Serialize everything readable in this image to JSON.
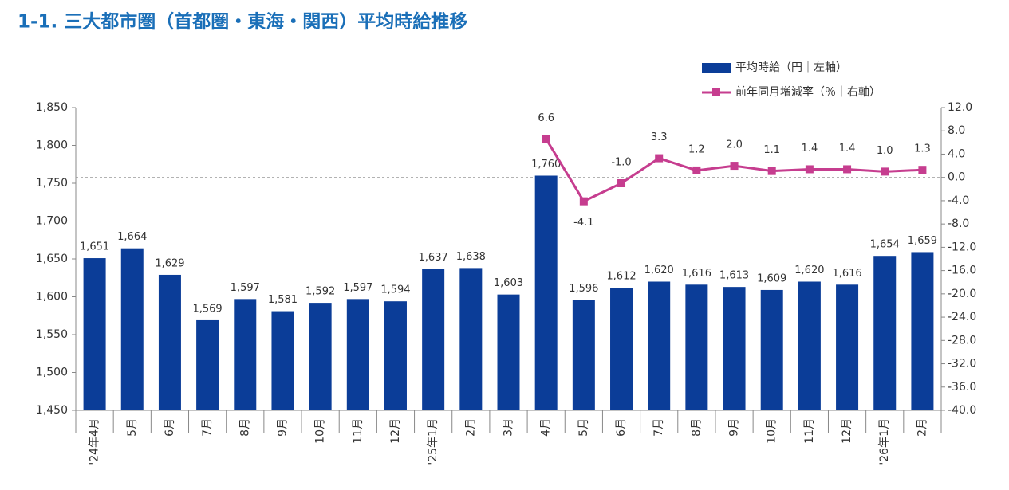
{
  "chart_data": {
    "type": "bar_line",
    "title": "1-1. 三大都市圏（首都圏・東海・関西）平均時給推移",
    "categories": [
      "'24年4月",
      "5月",
      "6月",
      "7月",
      "8月",
      "9月",
      "10月",
      "11月",
      "12月",
      "'25年1月",
      "2月",
      "3月",
      "4月",
      "5月",
      "6月",
      "7月",
      "8月",
      "9月",
      "10月",
      "11月",
      "12月",
      "'26年1月",
      "2月"
    ],
    "series": [
      {
        "name": "平均時給（円｜左軸）",
        "type": "bar",
        "color": "#0b3d98",
        "values": [
          1651,
          1664,
          1629,
          1569,
          1597,
          1581,
          1592,
          1597,
          1594,
          1637,
          1638,
          1603,
          1760,
          1596,
          1612,
          1620,
          1616,
          1613,
          1609,
          1620,
          1616,
          1654,
          1659
        ],
        "value_labels": [
          "1,651",
          "1,664",
          "1,629",
          "1,569",
          "1,597",
          "1,581",
          "1,592",
          "1,597",
          "1,594",
          "1,637",
          "1,638",
          "1,603",
          "1,760",
          "1,596",
          "1,612",
          "1,620",
          "1,616",
          "1,613",
          "1,609",
          "1,620",
          "1,616",
          "1,654",
          "1,659"
        ]
      },
      {
        "name": "前年同月増減率（％｜右軸）",
        "type": "line",
        "axis": "y2",
        "color": "#c63d8f",
        "values": [
          null,
          null,
          null,
          null,
          null,
          null,
          null,
          null,
          null,
          null,
          null,
          null,
          6.6,
          -4.1,
          -1.0,
          3.3,
          1.2,
          2.0,
          1.1,
          1.4,
          1.4,
          1.0,
          1.3
        ],
        "value_labels": [
          null,
          null,
          null,
          null,
          null,
          null,
          null,
          null,
          null,
          null,
          null,
          null,
          "6.6",
          "-4.1",
          "-1.0",
          "3.3",
          "1.2",
          "2.0",
          "1.1",
          "1.4",
          "1.4",
          "1.0",
          "1.3"
        ]
      }
    ],
    "ylim": [
      1450,
      1850
    ],
    "yticks": [
      {
        "value": 1450,
        "label": "1,450"
      },
      {
        "value": 1500,
        "label": "1,500"
      },
      {
        "value": 1550,
        "label": "1,550"
      },
      {
        "value": 1600,
        "label": "1,600"
      },
      {
        "value": 1650,
        "label": "1,650"
      },
      {
        "value": 1700,
        "label": "1,700"
      },
      {
        "value": 1750,
        "label": "1,750"
      },
      {
        "value": 1800,
        "label": "1,800"
      },
      {
        "value": 1850,
        "label": "1,850"
      }
    ],
    "y2lim": [
      -40,
      12
    ],
    "y2ticks": [
      {
        "value": 12,
        "label": "12.0"
      },
      {
        "value": 8,
        "label": "8.0"
      },
      {
        "value": 4,
        "label": "4.0"
      },
      {
        "value": 0,
        "label": "0.0"
      },
      {
        "value": -4,
        "label": "-4.0"
      },
      {
        "value": -8,
        "label": "-8.0"
      },
      {
        "value": -12,
        "label": "-12.0"
      },
      {
        "value": -16,
        "label": "-16.0"
      },
      {
        "value": -20,
        "label": "-20.0"
      },
      {
        "value": -24,
        "label": "-24.0"
      },
      {
        "value": -28,
        "label": "-28.0"
      },
      {
        "value": -32,
        "label": "-32.0"
      },
      {
        "value": -36,
        "label": "-36.0"
      },
      {
        "value": -40,
        "label": "-40.0"
      }
    ],
    "legend": "top-right"
  }
}
